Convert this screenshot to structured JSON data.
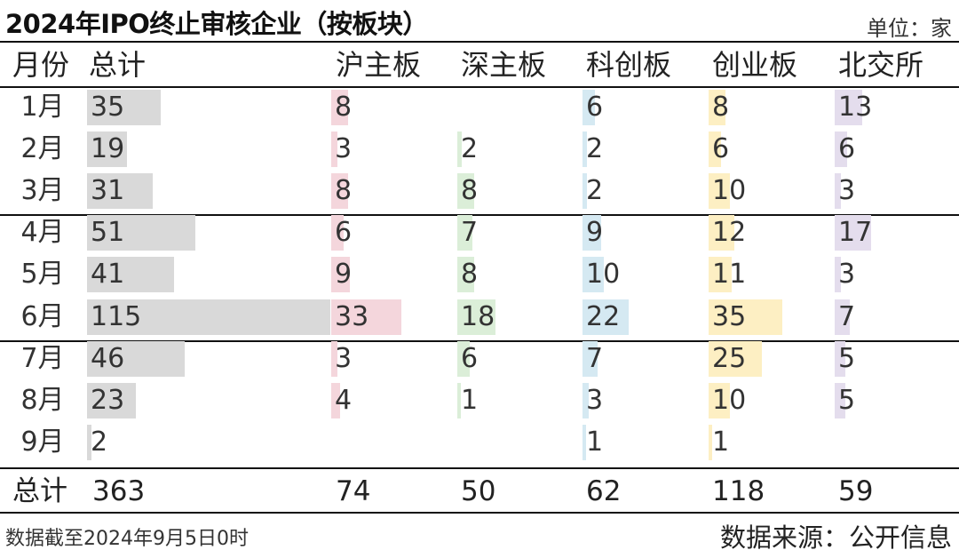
{
  "title": "2024年IPO终止审核企业（按板块）",
  "unit_label": "单位：家",
  "footnote": "数据截至2024年9月5日0时",
  "source": "数据来源：公开信息",
  "colors": {
    "总计": "#d9d9d9",
    "沪主板": "#f4d6dc",
    "深主板": "#dbeed8",
    "科创板": "#d5e9f2",
    "创业板": "#fdefc3",
    "北交所": "#e4dded"
  },
  "chart_data": {
    "type": "table",
    "columns": [
      "月份",
      "总计",
      "沪主板",
      "深主板",
      "科创板",
      "创业板",
      "北交所"
    ],
    "rows": [
      {
        "month": "1月",
        "values": [
          35,
          8,
          null,
          6,
          8,
          13
        ]
      },
      {
        "month": "2月",
        "values": [
          19,
          3,
          2,
          2,
          6,
          6
        ]
      },
      {
        "month": "3月",
        "values": [
          31,
          8,
          8,
          2,
          10,
          3
        ]
      },
      {
        "month": "4月",
        "values": [
          51,
          6,
          7,
          9,
          12,
          17
        ]
      },
      {
        "month": "5月",
        "values": [
          41,
          9,
          8,
          10,
          11,
          3
        ]
      },
      {
        "month": "6月",
        "values": [
          115,
          33,
          18,
          22,
          35,
          7
        ]
      },
      {
        "month": "7月",
        "values": [
          46,
          3,
          6,
          7,
          25,
          5
        ]
      },
      {
        "month": "8月",
        "values": [
          23,
          4,
          1,
          3,
          10,
          5
        ]
      },
      {
        "month": "9月",
        "values": [
          2,
          null,
          null,
          1,
          1,
          null
        ]
      }
    ],
    "totals_label": "总计",
    "totals": [
      363,
      74,
      50,
      62,
      118,
      59
    ]
  }
}
